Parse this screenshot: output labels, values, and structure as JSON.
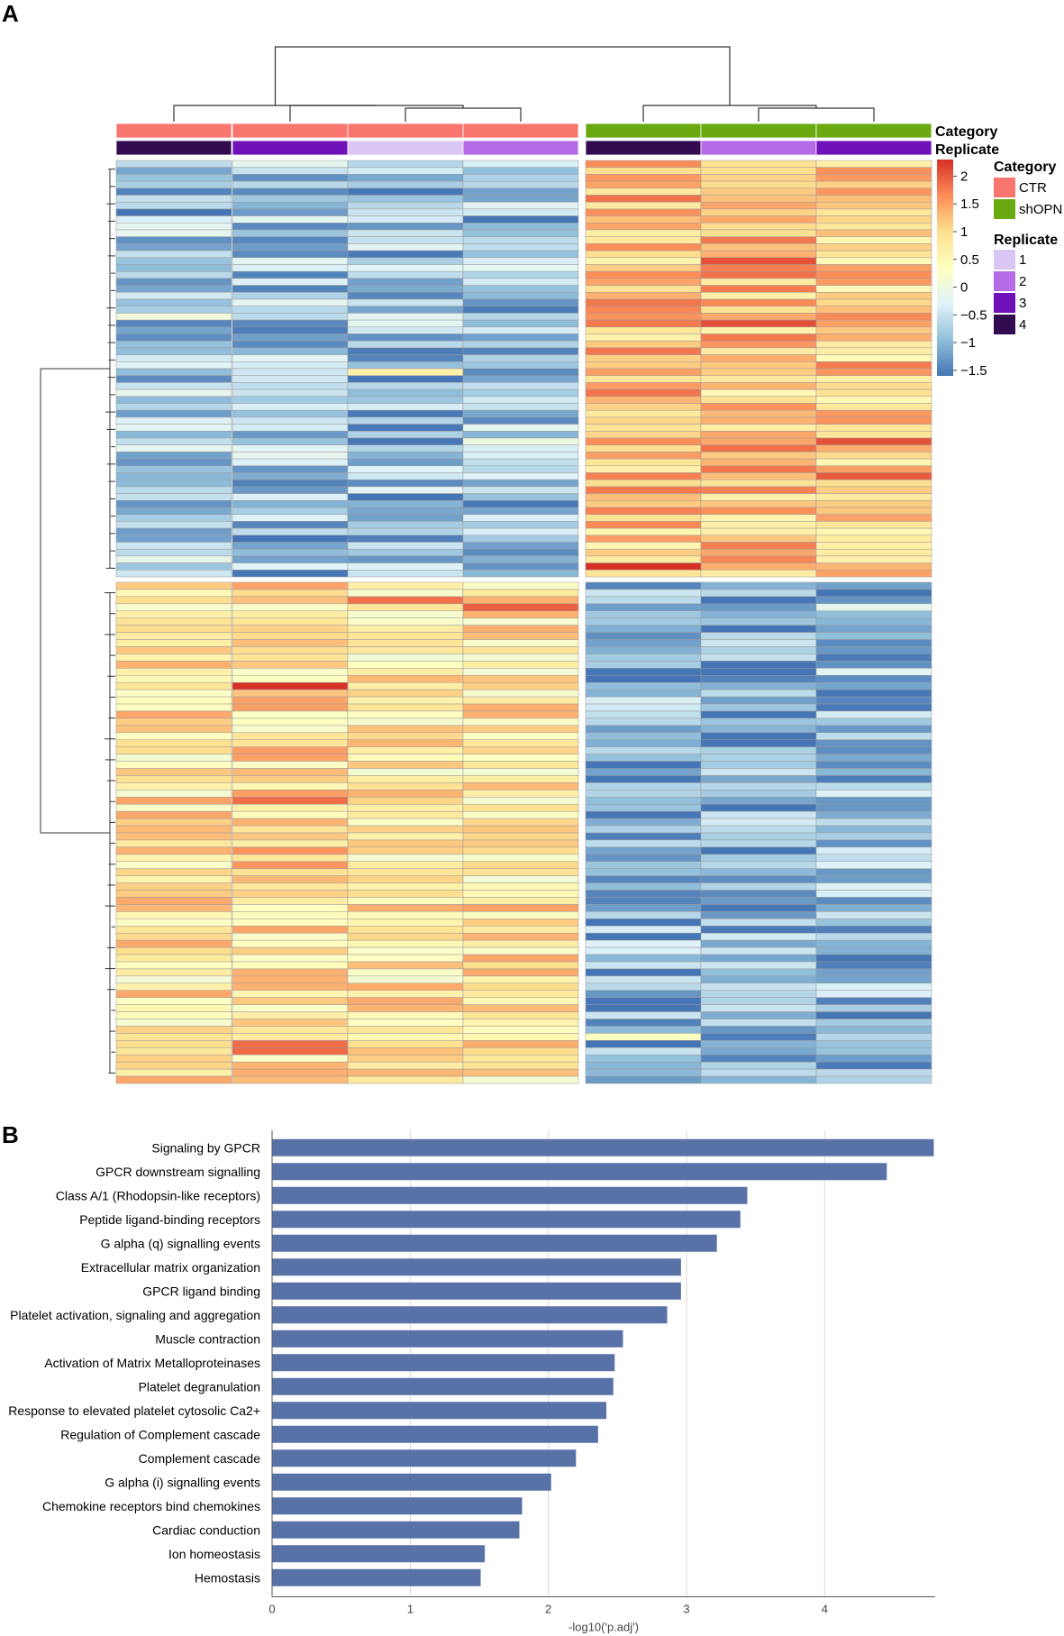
{
  "panel_a": {
    "label": "A",
    "annotation_titles": {
      "category": "Category",
      "replicate": "Replicate"
    },
    "legend": {
      "category_title": "Category",
      "categories": [
        {
          "name": "CTR",
          "color": "#f8766d"
        },
        {
          "name": "shOPN",
          "color": "#6aaa10"
        }
      ],
      "replicate_title": "Replicate",
      "replicates": [
        {
          "name": "1",
          "color": "#d9c6f5"
        },
        {
          "name": "2",
          "color": "#b56be6"
        },
        {
          "name": "3",
          "color": "#7010b8"
        },
        {
          "name": "4",
          "color": "#320a50"
        }
      ],
      "colorbar_ticks": [
        "2",
        "1.5",
        "1",
        "0.5",
        "0",
        "−0.5",
        "−1",
        "−1.5"
      ],
      "colorbar_range": [
        -1.6,
        2.3
      ],
      "colorbar_colors": [
        "#4575b4",
        "#91bfdb",
        "#e0f3f8",
        "#ffffbf",
        "#fee090",
        "#fc8d59",
        "#d73027"
      ]
    }
  },
  "panel_b": {
    "label": "B"
  },
  "chart_data": [
    {
      "type": "heatmap",
      "title": "",
      "columns": [
        {
          "category": "CTR",
          "replicate": "4"
        },
        {
          "category": "CTR",
          "replicate": "3"
        },
        {
          "category": "CTR",
          "replicate": "1"
        },
        {
          "category": "CTR",
          "replicate": "2"
        },
        {
          "category": "shOPN",
          "replicate": "4"
        },
        {
          "category": "shOPN",
          "replicate": "2"
        },
        {
          "category": "shOPN",
          "replicate": "3"
        }
      ],
      "row_clusters": [
        {
          "name": "cluster-1",
          "rows": 60,
          "mean_values": [
            -0.8,
            -0.9,
            -0.9,
            -0.9,
            1.2,
            1.2,
            1.1
          ]
        },
        {
          "name": "cluster-2",
          "rows": 70,
          "mean_values": [
            0.8,
            0.9,
            0.8,
            0.8,
            -1.0,
            -1.1,
            -1.0
          ]
        }
      ],
      "value_range": [
        -1.6,
        2.3
      ]
    },
    {
      "type": "bar",
      "orientation": "horizontal",
      "categories": [
        "Signaling by GPCR",
        "GPCR downstream signalling",
        "Class A/1 (Rhodopsin-like receptors)",
        "Peptide ligand-binding receptors",
        "G alpha (q) signalling events",
        "Extracellular matrix organization",
        "GPCR ligand binding",
        "Platelet activation, signaling and aggregation",
        "Muscle contraction",
        "Activation of Matrix Metalloproteinases",
        "Platelet degranulation ",
        "Response to elevated platelet cytosolic Ca2+",
        "Regulation of Complement cascade",
        "Complement cascade",
        "G alpha (i) signalling events",
        "Chemokine receptors bind chemokines",
        "Cardiac conduction",
        "Ion homeostasis",
        "Hemostasis"
      ],
      "values": [
        4.79,
        4.45,
        3.44,
        3.39,
        3.22,
        2.96,
        2.96,
        2.86,
        2.54,
        2.48,
        2.47,
        2.42,
        2.36,
        2.2,
        2.02,
        1.81,
        1.79,
        1.54,
        1.51
      ],
      "xlabel": "-log10('p.adj')",
      "ylabel": "",
      "xlim": [
        0,
        4.8
      ],
      "xticks": [
        0,
        1,
        2,
        3,
        4
      ],
      "grid": true,
      "bar_color": "#5872a8"
    }
  ]
}
